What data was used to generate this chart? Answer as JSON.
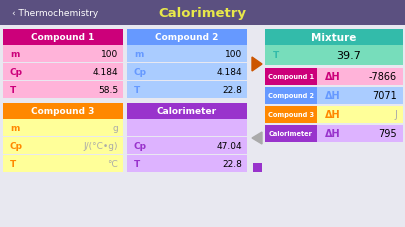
{
  "title": "Calorimetry",
  "back_label": "Thermochemistry",
  "header_bg": "#5b5080",
  "title_color": "#e8e84a",
  "back_color": "#ffffff",
  "compound1_header_bg": "#cc007a",
  "compound1_header_text": "Compound 1",
  "compound1_rows": [
    [
      "m",
      "100"
    ],
    [
      "Cp",
      "4.184"
    ],
    [
      "T",
      "58.5"
    ]
  ],
  "compound1_row_bg": "#ffb3d9",
  "compound1_label_color": "#cc007a",
  "compound1_value_color": "#000000",
  "compound2_header_bg": "#6699ff",
  "compound2_header_text": "Compound 2",
  "compound2_rows": [
    [
      "m",
      "100"
    ],
    [
      "Cp",
      "4.184"
    ],
    [
      "T",
      "22.8"
    ]
  ],
  "compound2_row_bg": "#aaccff",
  "compound2_label_color": "#6699ff",
  "compound2_value_color": "#000000",
  "compound3_header_bg": "#ff8800",
  "compound3_header_text": "Compound 3",
  "compound3_rows": [
    [
      "m",
      "g"
    ],
    [
      "Cp",
      "J/(°C•g)"
    ],
    [
      "T",
      "°C"
    ]
  ],
  "compound3_row_bg": "#ffff99",
  "compound3_label_color": "#ff8800",
  "compound3_value_color": "#aaaaaa",
  "calorimeter_header_bg": "#9933cc",
  "calorimeter_header_text": "Calorimeter",
  "calorimeter_rows": [
    [
      "",
      ""
    ],
    [
      "Cp",
      "47.04"
    ],
    [
      "T",
      "22.8"
    ]
  ],
  "calorimeter_row_bg": "#ddb3ff",
  "calorimeter_label_color": "#9933cc",
  "calorimeter_value_color": "#000000",
  "mixture_header_bg": "#33bbaa",
  "mixture_header_text": "Mixture",
  "mixture_header_text_color": "#ffffff",
  "mixture_T_bg": "#77ddbb",
  "mixture_T_label": "T",
  "mixture_T_value": "39.7",
  "right_rows": [
    {
      "label_bg": "#cc007a",
      "label_text": "Compound 1",
      "row_bg": "#ffb3d9",
      "dh": "ΔH",
      "value": "-7866",
      "dh_color": "#cc007a",
      "val_color": "#000000"
    },
    {
      "label_bg": "#6699ff",
      "label_text": "Compound 2",
      "row_bg": "#aaccff",
      "dh": "ΔH",
      "value": "7071",
      "dh_color": "#6699ff",
      "val_color": "#000000"
    },
    {
      "label_bg": "#ff8800",
      "label_text": "Compound 3",
      "row_bg": "#ffff99",
      "dh": "ΔH",
      "value": "J",
      "dh_color": "#ff8800",
      "val_color": "#aaaaaa"
    },
    {
      "label_bg": "#9933cc",
      "label_text": "Calorimeter",
      "row_bg": "#ddb3ff",
      "dh": "ΔH",
      "value": "795",
      "dh_color": "#9933cc",
      "val_color": "#000000"
    }
  ],
  "page_bg": "#e8e8f0",
  "arrow_right_color": "#cc5500",
  "arrow_left_color": "#aaaaaa",
  "square_color": "#9933cc"
}
